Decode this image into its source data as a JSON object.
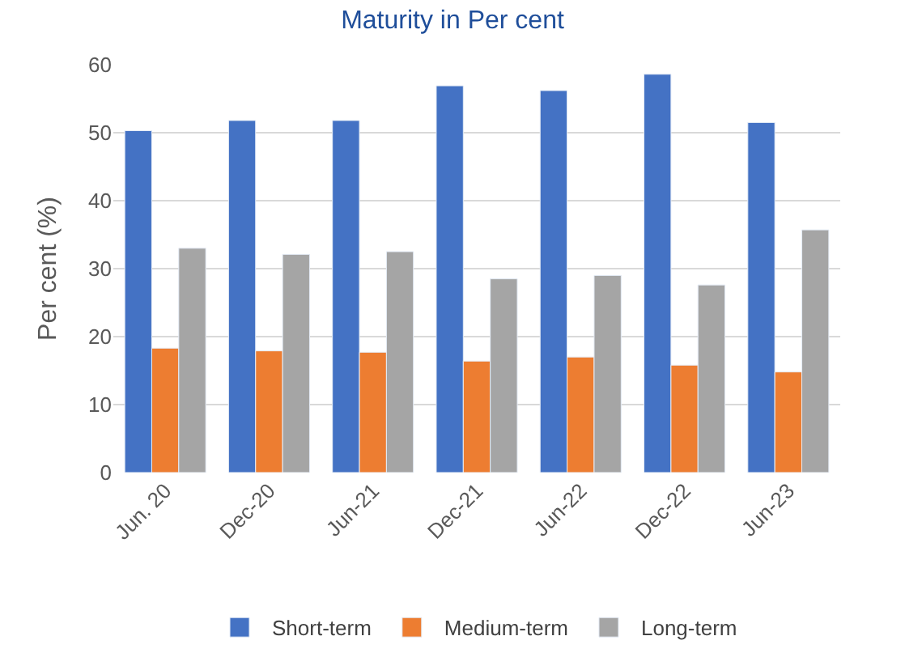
{
  "chart_data": {
    "type": "bar",
    "title": "Maturity in Per cent",
    "ylabel": "Per cent (%)",
    "categories": [
      "Jun. 20",
      "Dec-20",
      "Jun-21",
      "Dec-21",
      "Jun-22",
      "Dec-22",
      "Jun-23"
    ],
    "series": [
      {
        "name": "Short-term",
        "color": "#4472c4",
        "values": [
          50.3,
          51.8,
          51.8,
          56.9,
          56.2,
          58.6,
          51.5
        ]
      },
      {
        "name": "Medium-term",
        "color": "#ed7d31",
        "values": [
          18.3,
          17.9,
          17.7,
          16.4,
          17.0,
          15.8,
          14.8
        ]
      },
      {
        "name": "Long-term",
        "color": "#a5a5a5",
        "values": [
          33.0,
          32.1,
          32.5,
          28.5,
          29.0,
          27.6,
          35.7
        ]
      }
    ],
    "ylim": [
      0,
      60
    ],
    "yticks": [
      0,
      10,
      20,
      30,
      40,
      50,
      60
    ],
    "grid": "y",
    "legend": "bottom"
  }
}
